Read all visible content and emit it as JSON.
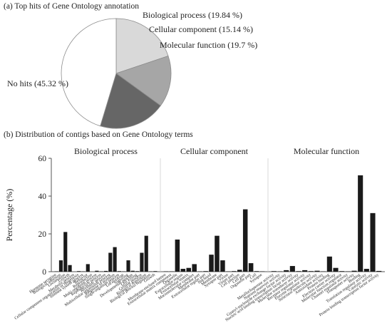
{
  "panel_a": {
    "title": "(a) Top hits of Gene Ontology annotation"
  },
  "panel_b": {
    "title": "(b) Distribution of contigs based on Gene Ontology terms"
  },
  "chart_data": [
    {
      "type": "pie",
      "slices": [
        {
          "label": "Biological process (19.84 %)",
          "value": 19.84,
          "color": "#d9d9d9"
        },
        {
          "label": "Cellular component (15.14 %)",
          "value": 15.14,
          "color": "#a6a6a6"
        },
        {
          "label": "Molecular function (19.7 %)",
          "value": 19.7,
          "color": "#666666"
        },
        {
          "label": "No hits (45.32 %)",
          "value": 45.32,
          "color": "#ffffff"
        }
      ]
    },
    {
      "type": "bar",
      "ylabel": "Percentage (%)",
      "ylim": [
        0,
        60
      ],
      "yticks": [
        0,
        20,
        40,
        60
      ],
      "bar_color": "#1a1a1a",
      "groups": [
        {
          "name": "Biological process",
          "categories": [
            "Hormone secretion",
            "Biological adhesion",
            "Locomotion",
            "Growth",
            "Metabolic process",
            "Cellular component organization or biogenesis",
            "Immune system process",
            "Behavior",
            "Reproduction",
            "Multi-organism process",
            "Reproductive process",
            "Rhythmic process",
            "Multicellular organismal process",
            "Response to stimulus",
            "Single-organism process",
            "Localization",
            "Signaling",
            "Developmental process",
            "Cell killing",
            "Cellular process",
            "Biological regulation",
            "Biological process regulation",
            "Growth"
          ],
          "values": [
            0.2,
            6,
            21,
            3.5,
            0,
            0.3,
            0.2,
            4,
            0,
            0.5,
            0.2,
            0.4,
            10,
            13,
            0.3,
            0.2,
            6,
            0.5,
            0.3,
            10,
            19,
            0.2,
            0.3
          ]
        },
        {
          "name": "Cellular component",
          "categories": [
            "Membrane-enclosed lumen",
            "Extracellular matrix component",
            "Organelle",
            "Extracellular region",
            "Extracellular matrix",
            "Macromolecular complex",
            "Membrane part",
            "Extracellular region part",
            "Nucleoid",
            "Membrane",
            "Synapse part",
            "Virion",
            "Virion part",
            "Cell junction",
            "Cell part",
            "Organelle part",
            "Cell",
            "Synapse"
          ],
          "values": [
            0.2,
            0.2,
            17,
            1.5,
            2,
            4,
            0.2,
            0.3,
            9,
            19,
            6,
            0.2,
            0.3,
            1,
            33,
            4.5,
            0.3,
            0.2
          ]
        },
        {
          "name": "Molecular function",
          "categories": [
            "Metallochaperone activity",
            "Nutrient reservoir activity",
            "Guanyl-nucleotide exchange factor activity",
            "Nucleic acid binding transcription factor activity",
            "Molecular transducer activity",
            "Receptor regulator activity",
            "Enzyme regulator activity",
            "Structural molecule activity",
            "Antioxidant activity",
            "Protein binding",
            "Electron carrier activity",
            "Molecular function regulator",
            "Channel regulator activity",
            "Transporter activity",
            "Binding",
            "Translation regulator activity",
            "Catalytic activity",
            "Protein binding transcription factor activity"
          ],
          "values": [
            0.3,
            0.2,
            0.8,
            3,
            0.3,
            0.8,
            0.3,
            0.5,
            0.2,
            8,
            2,
            0.3,
            0.2,
            0.5,
            51,
            1.5,
            31,
            0.4
          ]
        }
      ]
    }
  ]
}
